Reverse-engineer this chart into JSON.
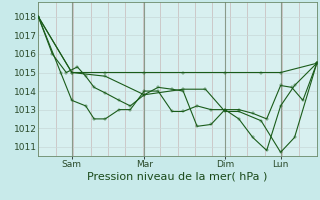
{
  "bg_color": "#c8eaea",
  "plot_bg_color": "#d8f0f0",
  "grid_color_v": "#c8b8b8",
  "grid_color_h": "#c8d8d8",
  "line_color": "#1a5c1a",
  "xlabel": "Pression niveau de la mer( hPa )",
  "xlabel_fontsize": 8,
  "yticks": [
    1011,
    1012,
    1013,
    1014,
    1015,
    1016,
    1017,
    1018
  ],
  "ylim": [
    1010.5,
    1018.8
  ],
  "xtick_labels": [
    "Sam",
    "Mar",
    "Dim",
    "Lun"
  ],
  "xtick_positions": [
    0.12,
    0.38,
    0.67,
    0.87
  ],
  "xlim_days": [
    0.0,
    1.0
  ],
  "series1_x": [
    0.0,
    0.05,
    0.1,
    0.14,
    0.17,
    0.2,
    0.24,
    0.29,
    0.33,
    0.38,
    0.43,
    0.48,
    0.52,
    0.57,
    0.62,
    0.67,
    0.72,
    0.77,
    0.82,
    0.87,
    0.91,
    0.95,
    1.0
  ],
  "series1_y": [
    1018.0,
    1016.0,
    1015.0,
    1015.3,
    1014.8,
    1014.2,
    1013.9,
    1013.5,
    1013.2,
    1013.8,
    1014.2,
    1014.1,
    1014.0,
    1012.1,
    1012.2,
    1013.0,
    1013.0,
    1012.8,
    1012.5,
    1014.3,
    1014.2,
    1013.5,
    1015.5
  ],
  "series2_x": [
    0.0,
    0.12,
    0.24,
    0.38,
    0.52,
    0.6,
    0.67,
    0.72,
    0.8,
    0.87,
    0.92,
    1.0
  ],
  "series2_y": [
    1018.0,
    1015.0,
    1014.8,
    1013.8,
    1014.1,
    1014.1,
    1012.9,
    1012.9,
    1012.4,
    1010.7,
    1011.5,
    1015.5
  ],
  "series3_x": [
    0.0,
    0.12,
    0.24,
    0.38,
    0.52,
    0.67,
    0.8,
    0.87,
    1.0
  ],
  "series3_y": [
    1018.0,
    1015.0,
    1015.0,
    1015.0,
    1015.0,
    1015.0,
    1015.0,
    1015.0,
    1015.5
  ],
  "series4_x": [
    0.0,
    0.08,
    0.12,
    0.17,
    0.2,
    0.24,
    0.29,
    0.33,
    0.38,
    0.43,
    0.48,
    0.52,
    0.57,
    0.62,
    0.67,
    0.72,
    0.77,
    0.82,
    0.87,
    0.92,
    1.0
  ],
  "series4_y": [
    1018.0,
    1015.0,
    1013.5,
    1013.2,
    1012.5,
    1012.5,
    1013.0,
    1013.0,
    1014.0,
    1014.0,
    1012.9,
    1012.9,
    1013.2,
    1013.0,
    1013.0,
    1012.5,
    1011.5,
    1010.8,
    1013.2,
    1014.3,
    1015.5
  ]
}
